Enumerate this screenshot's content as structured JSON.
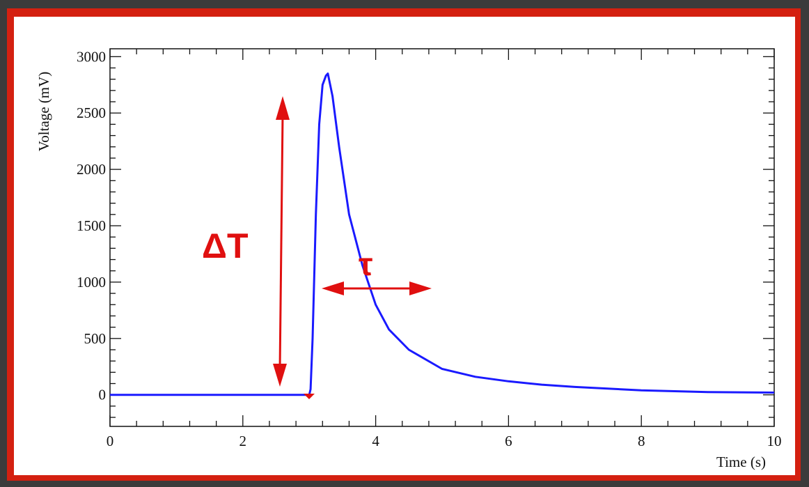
{
  "colors": {
    "background": "#3b3b3b",
    "frame_border": "#d42010",
    "plot_background": "#ffffff",
    "signal": "#1a1aff",
    "annotation": "#e01010",
    "axis": "#111111"
  },
  "chart_data": {
    "type": "line",
    "title": "",
    "xlabel": "Time (s)",
    "ylabel": "Voltage (mV)",
    "xlim": [
      0,
      10
    ],
    "ylim": [
      -280,
      3070
    ],
    "x_ticks": [
      "0",
      "2",
      "4",
      "6",
      "8",
      "10"
    ],
    "y_ticks": [
      "0",
      "500",
      "1000",
      "1500",
      "2000",
      "2500",
      "3000"
    ],
    "grid": false,
    "legend": "none",
    "series": [
      {
        "x": [
          0,
          1,
          2,
          2.5,
          3.0,
          3.02,
          3.05,
          3.1,
          3.15,
          3.2,
          3.25,
          3.28,
          3.35,
          3.45,
          3.6,
          3.8,
          4.0,
          4.2,
          4.5,
          5.0,
          5.5,
          6.0,
          6.5,
          7.0,
          8.0,
          9.0,
          10.0
        ],
        "values": [
          0,
          0,
          0,
          0,
          0,
          50,
          500,
          1600,
          2400,
          2750,
          2830,
          2850,
          2650,
          2200,
          1600,
          1150,
          800,
          580,
          400,
          230,
          160,
          120,
          90,
          70,
          40,
          25,
          20
        ]
      }
    ],
    "annotations": {
      "delta_t_label": "ΔT",
      "tau_label": "τ"
    }
  }
}
